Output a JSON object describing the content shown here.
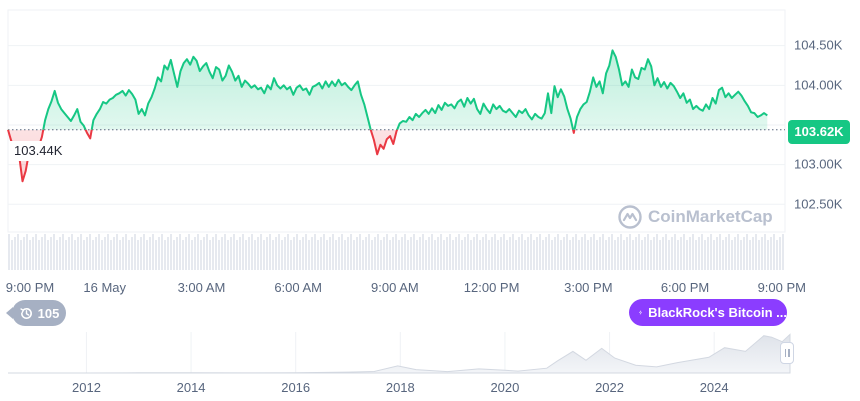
{
  "chart_data": [
    {
      "type": "line",
      "ylim": [
        102150,
        104950
      ],
      "reference_line_value": 103440,
      "reference_label": "103.44K",
      "current_value_label": "103.62K",
      "y_ticks": [
        {
          "value": 104500,
          "label": "104.50K"
        },
        {
          "value": 104000,
          "label": "104.00K"
        },
        {
          "value": 103500,
          "label": "103.50K"
        },
        {
          "value": 103000,
          "label": "103.00K"
        },
        {
          "value": 102500,
          "label": "102.50K"
        }
      ],
      "x_ticks": [
        {
          "t": 0,
          "label": "9:00 PM"
        },
        {
          "t": 3,
          "label": "16 May"
        },
        {
          "t": 6,
          "label": "3:00 AM"
        },
        {
          "t": 9,
          "label": "6:00 AM"
        },
        {
          "t": 12,
          "label": "9:00 AM"
        },
        {
          "t": 15,
          "label": "12:00 PM"
        },
        {
          "t": 18,
          "label": "3:00 PM"
        },
        {
          "t": 21,
          "label": "6:00 PM"
        },
        {
          "t": 24,
          "label": "9:00 PM"
        }
      ],
      "x_range_hours": [
        0,
        24.1
      ],
      "points": [
        [
          0.0,
          103440
        ],
        [
          0.1,
          103300
        ],
        [
          0.25,
          103200
        ],
        [
          0.35,
          103100
        ],
        [
          0.45,
          102790
        ],
        [
          0.55,
          102920
        ],
        [
          0.65,
          103150
        ],
        [
          0.75,
          103100
        ],
        [
          0.85,
          103250
        ],
        [
          0.95,
          103220
        ],
        [
          1.05,
          103350
        ],
        [
          1.15,
          103560
        ],
        [
          1.25,
          103700
        ],
        [
          1.35,
          103800
        ],
        [
          1.45,
          103930
        ],
        [
          1.55,
          103780
        ],
        [
          1.65,
          103700
        ],
        [
          1.75,
          103650
        ],
        [
          1.85,
          103600
        ],
        [
          1.95,
          103550
        ],
        [
          2.05,
          103620
        ],
        [
          2.15,
          103700
        ],
        [
          2.25,
          103540
        ],
        [
          2.35,
          103490
        ],
        [
          2.45,
          103400
        ],
        [
          2.55,
          103330
        ],
        [
          2.65,
          103560
        ],
        [
          2.75,
          103640
        ],
        [
          2.85,
          103700
        ],
        [
          2.95,
          103790
        ],
        [
          3.05,
          103770
        ],
        [
          3.15,
          103820
        ],
        [
          3.25,
          103840
        ],
        [
          3.35,
          103880
        ],
        [
          3.45,
          103900
        ],
        [
          3.55,
          103930
        ],
        [
          3.65,
          103870
        ],
        [
          3.75,
          103940
        ],
        [
          3.85,
          103890
        ],
        [
          3.95,
          103820
        ],
        [
          4.05,
          103640
        ],
        [
          4.15,
          103700
        ],
        [
          4.25,
          103620
        ],
        [
          4.35,
          103770
        ],
        [
          4.45,
          103850
        ],
        [
          4.55,
          103960
        ],
        [
          4.65,
          104100
        ],
        [
          4.75,
          104050
        ],
        [
          4.85,
          104250
        ],
        [
          4.95,
          104200
        ],
        [
          5.05,
          104320
        ],
        [
          5.15,
          104150
        ],
        [
          5.25,
          103980
        ],
        [
          5.35,
          104180
        ],
        [
          5.45,
          104280
        ],
        [
          5.55,
          104330
        ],
        [
          5.65,
          104260
        ],
        [
          5.75,
          104360
        ],
        [
          5.85,
          104310
        ],
        [
          5.95,
          104180
        ],
        [
          6.05,
          104240
        ],
        [
          6.15,
          104280
        ],
        [
          6.25,
          104170
        ],
        [
          6.35,
          104090
        ],
        [
          6.45,
          104230
        ],
        [
          6.55,
          104200
        ],
        [
          6.65,
          104060
        ],
        [
          6.75,
          104120
        ],
        [
          6.85,
          104250
        ],
        [
          6.95,
          104170
        ],
        [
          7.05,
          104060
        ],
        [
          7.15,
          104120
        ],
        [
          7.25,
          103980
        ],
        [
          7.35,
          104060
        ],
        [
          7.45,
          104020
        ],
        [
          7.55,
          103970
        ],
        [
          7.65,
          104000
        ],
        [
          7.75,
          103950
        ],
        [
          7.85,
          103970
        ],
        [
          7.95,
          103900
        ],
        [
          8.05,
          104000
        ],
        [
          8.15,
          103950
        ],
        [
          8.25,
          104090
        ],
        [
          8.35,
          104000
        ],
        [
          8.45,
          103960
        ],
        [
          8.55,
          104000
        ],
        [
          8.65,
          103950
        ],
        [
          8.75,
          103980
        ],
        [
          8.85,
          103880
        ],
        [
          8.95,
          103970
        ],
        [
          9.05,
          104000
        ],
        [
          9.15,
          103940
        ],
        [
          9.25,
          103960
        ],
        [
          9.35,
          103880
        ],
        [
          9.45,
          103980
        ],
        [
          9.55,
          104000
        ],
        [
          9.65,
          104030
        ],
        [
          9.75,
          103960
        ],
        [
          9.85,
          104050
        ],
        [
          9.95,
          103980
        ],
        [
          10.05,
          104050
        ],
        [
          10.15,
          103990
        ],
        [
          10.25,
          104070
        ],
        [
          10.35,
          104000
        ],
        [
          10.45,
          104030
        ],
        [
          10.55,
          103980
        ],
        [
          10.65,
          103940
        ],
        [
          10.75,
          104000
        ],
        [
          10.85,
          104050
        ],
        [
          10.95,
          103880
        ],
        [
          11.05,
          103760
        ],
        [
          11.15,
          103600
        ],
        [
          11.25,
          103440
        ],
        [
          11.35,
          103310
        ],
        [
          11.45,
          103130
        ],
        [
          11.55,
          103250
        ],
        [
          11.65,
          103200
        ],
        [
          11.75,
          103320
        ],
        [
          11.85,
          103360
        ],
        [
          11.95,
          103260
        ],
        [
          12.05,
          103420
        ],
        [
          12.15,
          103520
        ],
        [
          12.25,
          103550
        ],
        [
          12.35,
          103540
        ],
        [
          12.45,
          103600
        ],
        [
          12.55,
          103560
        ],
        [
          12.65,
          103640
        ],
        [
          12.75,
          103600
        ],
        [
          12.85,
          103650
        ],
        [
          12.95,
          103690
        ],
        [
          13.05,
          103640
        ],
        [
          13.15,
          103710
        ],
        [
          13.25,
          103650
        ],
        [
          13.35,
          103750
        ],
        [
          13.45,
          103690
        ],
        [
          13.55,
          103780
        ],
        [
          13.65,
          103740
        ],
        [
          13.75,
          103760
        ],
        [
          13.85,
          103710
        ],
        [
          13.95,
          103790
        ],
        [
          14.05,
          103820
        ],
        [
          14.15,
          103730
        ],
        [
          14.25,
          103840
        ],
        [
          14.35,
          103770
        ],
        [
          14.45,
          103830
        ],
        [
          14.55,
          103700
        ],
        [
          14.65,
          103640
        ],
        [
          14.75,
          103770
        ],
        [
          14.85,
          103700
        ],
        [
          14.95,
          103650
        ],
        [
          15.05,
          103760
        ],
        [
          15.15,
          103700
        ],
        [
          15.25,
          103740
        ],
        [
          15.35,
          103680
        ],
        [
          15.45,
          103660
        ],
        [
          15.55,
          103700
        ],
        [
          15.65,
          103650
        ],
        [
          15.75,
          103600
        ],
        [
          15.85,
          103680
        ],
        [
          15.95,
          103650
        ],
        [
          16.05,
          103700
        ],
        [
          16.15,
          103620
        ],
        [
          16.25,
          103570
        ],
        [
          16.35,
          103640
        ],
        [
          16.45,
          103600
        ],
        [
          16.55,
          103580
        ],
        [
          16.65,
          103650
        ],
        [
          16.75,
          103900
        ],
        [
          16.85,
          103650
        ],
        [
          16.95,
          103990
        ],
        [
          17.05,
          103850
        ],
        [
          17.15,
          103950
        ],
        [
          17.25,
          103860
        ],
        [
          17.35,
          103700
        ],
        [
          17.45,
          103580
        ],
        [
          17.55,
          103400
        ],
        [
          17.65,
          103600
        ],
        [
          17.75,
          103700
        ],
        [
          17.85,
          103760
        ],
        [
          17.95,
          103790
        ],
        [
          18.05,
          103920
        ],
        [
          18.15,
          104100
        ],
        [
          18.25,
          103980
        ],
        [
          18.35,
          104050
        ],
        [
          18.45,
          103900
        ],
        [
          18.55,
          104150
        ],
        [
          18.65,
          104250
        ],
        [
          18.75,
          104440
        ],
        [
          18.85,
          104360
        ],
        [
          18.95,
          104200
        ],
        [
          19.05,
          104000
        ],
        [
          19.15,
          104050
        ],
        [
          19.25,
          103980
        ],
        [
          19.35,
          104200
        ],
        [
          19.45,
          104100
        ],
        [
          19.55,
          104080
        ],
        [
          19.65,
          104220
        ],
        [
          19.75,
          104200
        ],
        [
          19.85,
          104330
        ],
        [
          19.95,
          104240
        ],
        [
          20.05,
          104000
        ],
        [
          20.15,
          104090
        ],
        [
          20.25,
          103980
        ],
        [
          20.35,
          104040
        ],
        [
          20.45,
          103960
        ],
        [
          20.55,
          104030
        ],
        [
          20.65,
          103990
        ],
        [
          20.75,
          103920
        ],
        [
          20.85,
          103840
        ],
        [
          20.95,
          103900
        ],
        [
          21.05,
          103780
        ],
        [
          21.15,
          103820
        ],
        [
          21.25,
          103700
        ],
        [
          21.35,
          103740
        ],
        [
          21.45,
          103700
        ],
        [
          21.55,
          103680
        ],
        [
          21.65,
          103760
        ],
        [
          21.75,
          103700
        ],
        [
          21.85,
          103840
        ],
        [
          21.95,
          103770
        ],
        [
          22.05,
          103940
        ],
        [
          22.15,
          103970
        ],
        [
          22.25,
          103850
        ],
        [
          22.35,
          103900
        ],
        [
          22.45,
          103840
        ],
        [
          22.55,
          103880
        ],
        [
          22.65,
          103920
        ],
        [
          22.75,
          103870
        ],
        [
          22.85,
          103800
        ],
        [
          22.95,
          103740
        ],
        [
          23.05,
          103660
        ],
        [
          23.15,
          103650
        ],
        [
          23.25,
          103600
        ],
        [
          23.35,
          103620
        ],
        [
          23.45,
          103650
        ],
        [
          23.55,
          103620
        ]
      ],
      "grid": true,
      "volume_strip": true
    },
    {
      "type": "area",
      "x_ticks": [
        "2012",
        "2014",
        "2016",
        "2018",
        "2020",
        "2022",
        "2024"
      ],
      "x_range_years": [
        2010.5,
        2025.45
      ],
      "ylim": [
        0,
        110000
      ],
      "points": [
        [
          2010.5,
          0
        ],
        [
          2012,
          15
        ],
        [
          2013,
          500
        ],
        [
          2014,
          600
        ],
        [
          2015,
          250
        ],
        [
          2016,
          500
        ],
        [
          2017,
          2500
        ],
        [
          2017.5,
          4000
        ],
        [
          2017.95,
          19000
        ],
        [
          2018.3,
          9000
        ],
        [
          2018.9,
          3800
        ],
        [
          2019.5,
          11000
        ],
        [
          2020,
          7200
        ],
        [
          2020.25,
          5000
        ],
        [
          2020.8,
          13000
        ],
        [
          2021.0,
          32000
        ],
        [
          2021.3,
          58000
        ],
        [
          2021.55,
          34000
        ],
        [
          2021.85,
          66000
        ],
        [
          2022.1,
          40000
        ],
        [
          2022.5,
          21000
        ],
        [
          2022.9,
          16500
        ],
        [
          2023.3,
          28000
        ],
        [
          2023.9,
          42000
        ],
        [
          2024.2,
          68000
        ],
        [
          2024.6,
          58000
        ],
        [
          2024.95,
          100000
        ],
        [
          2025.1,
          96000
        ],
        [
          2025.3,
          84000
        ],
        [
          2025.45,
          103600
        ]
      ]
    }
  ],
  "overlays": {
    "history_count": "105",
    "news_title": "BlackRock's Bitcoin ...",
    "watermark": "CoinMarketCap"
  },
  "colors": {
    "up": "#16c784",
    "down": "#ea3943",
    "grid": "#eff2f5",
    "axis_text": "#58667e",
    "news_pill": "#8b3dff",
    "history_pill": "#a6b0c3"
  },
  "icons": {
    "history": "history-clock-icon",
    "news": "lightning-bolt-icon",
    "watermark": "coinmarketcap-logo-icon"
  }
}
